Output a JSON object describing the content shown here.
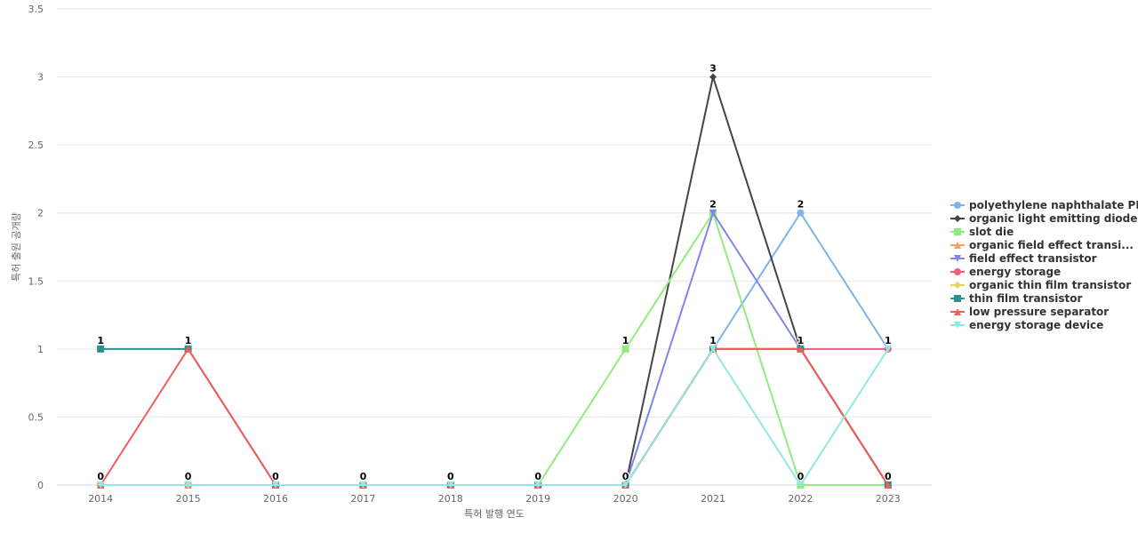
{
  "chart_data": {
    "type": "line",
    "x_label": "특허 발행 연도",
    "y_label": "특허 출원 공개량",
    "categories": [
      "2014",
      "2015",
      "2016",
      "2017",
      "2018",
      "2019",
      "2020",
      "2021",
      "2022",
      "2023"
    ],
    "ylim": [
      0,
      3.5
    ],
    "yticks": [
      0,
      0.5,
      1,
      1.5,
      2,
      2.5,
      3,
      3.5
    ],
    "grid": true,
    "series": [
      {
        "name": "polyethylene naphthalate PEN",
        "color": "#7cb5ec",
        "marker": "circle",
        "values": [
          0,
          0,
          0,
          0,
          0,
          0,
          0,
          1,
          2,
          1
        ]
      },
      {
        "name": "organic light emitting diode",
        "color": "#434348",
        "marker": "diamond",
        "values": [
          0,
          0,
          0,
          0,
          0,
          0,
          0,
          3,
          1,
          0
        ]
      },
      {
        "name": "slot die",
        "color": "#90ed7d",
        "marker": "square",
        "values": [
          0,
          0,
          0,
          0,
          0,
          0,
          1,
          2,
          0,
          0
        ]
      },
      {
        "name": "organic field effect transi...",
        "color": "#f7a35c",
        "marker": "triangle",
        "values": [
          0,
          0,
          0,
          0,
          0,
          0,
          0,
          1,
          1,
          0
        ]
      },
      {
        "name": "field effect transistor",
        "color": "#8085e9",
        "marker": "triangle-down",
        "values": [
          0,
          0,
          0,
          0,
          0,
          0,
          0,
          2,
          1,
          0
        ]
      },
      {
        "name": "energy storage",
        "color": "#f15c80",
        "marker": "circle",
        "values": [
          0,
          0,
          0,
          0,
          0,
          0,
          0,
          1,
          1,
          1
        ]
      },
      {
        "name": "organic thin film transistor",
        "color": "#e4d354",
        "marker": "diamond",
        "values": [
          0,
          0,
          0,
          0,
          0,
          0,
          0,
          1,
          1,
          0
        ]
      },
      {
        "name": "thin film transistor",
        "color": "#2b908f",
        "marker": "square",
        "values": [
          1,
          1,
          0,
          0,
          0,
          0,
          0,
          1,
          1,
          0
        ]
      },
      {
        "name": "low pressure separator",
        "color": "#f45b5b",
        "marker": "triangle",
        "values": [
          0,
          1,
          0,
          0,
          0,
          0,
          0,
          1,
          1,
          0
        ]
      },
      {
        "name": "energy storage device",
        "color": "#91e8e1",
        "marker": "triangle-down",
        "values": [
          0,
          0,
          0,
          0,
          0,
          0,
          0,
          1,
          0,
          1
        ]
      }
    ]
  }
}
